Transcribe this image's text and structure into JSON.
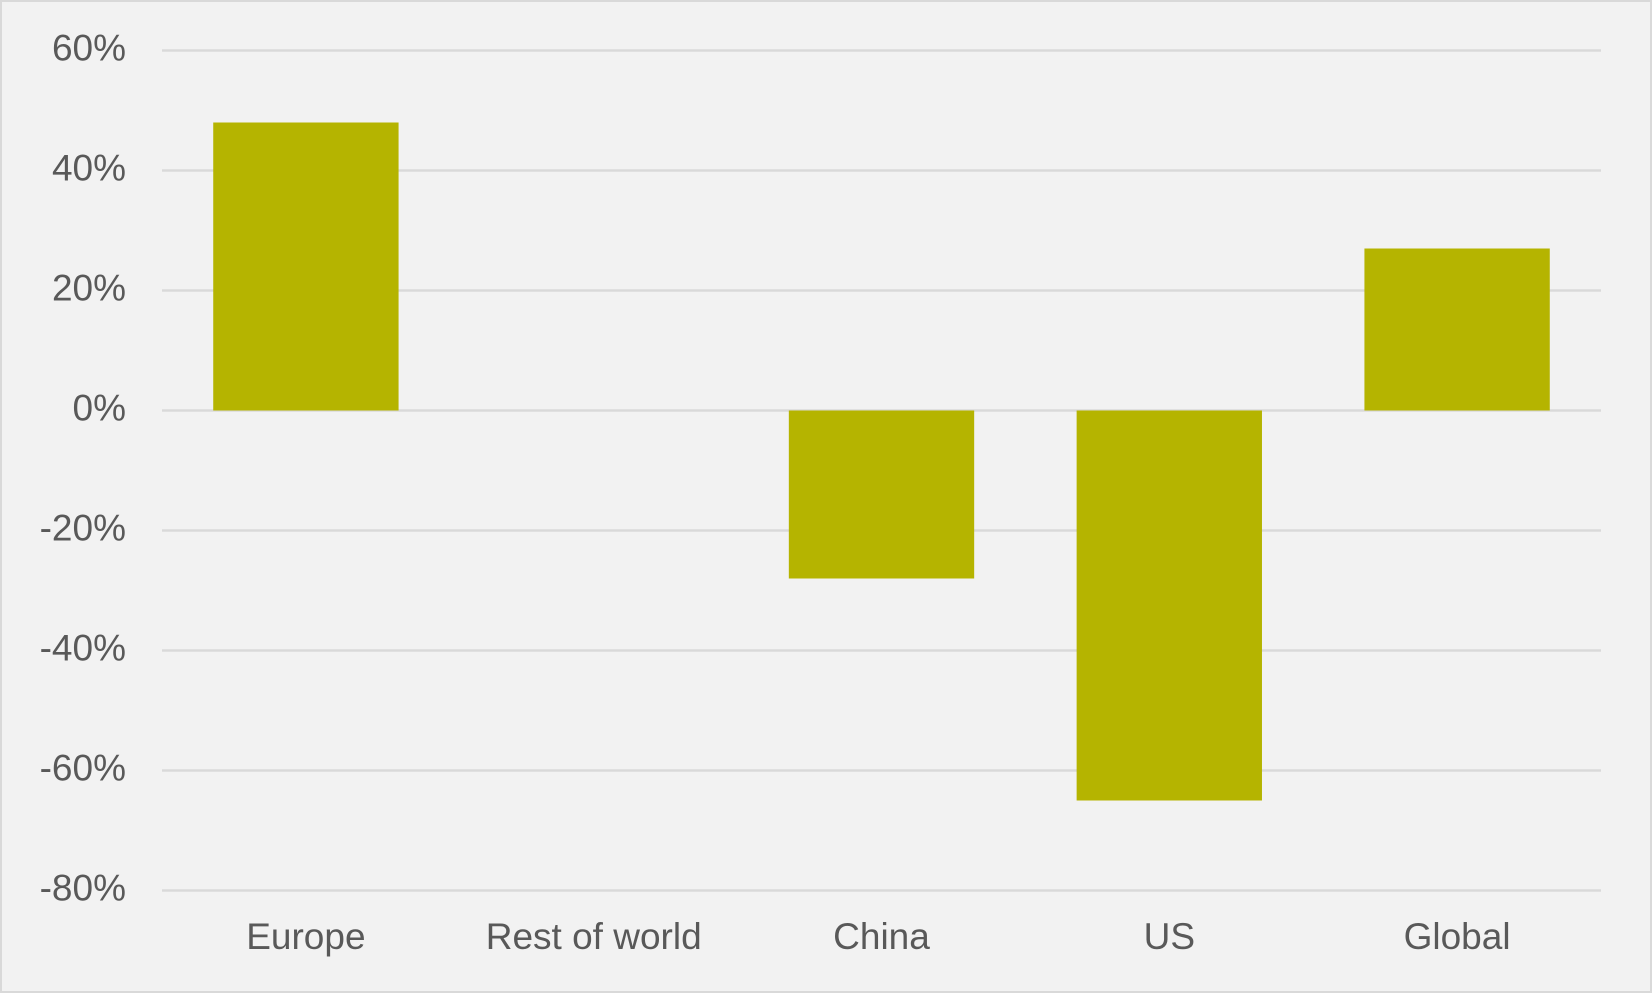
{
  "chart_data": {
    "type": "bar",
    "categories": [
      "Europe",
      "Rest of world",
      "China",
      "US",
      "Global"
    ],
    "values": [
      48,
      0,
      -28,
      -65,
      27
    ],
    "color": "#b5b400",
    "ylim": [
      -80,
      60
    ],
    "yticks": [
      {
        "value": -80,
        "label": "-80%"
      },
      {
        "value": -60,
        "label": "-60%"
      },
      {
        "value": -40,
        "label": "-40%"
      },
      {
        "value": -20,
        "label": "-20%"
      },
      {
        "value": 0,
        "label": "0%"
      },
      {
        "value": 20,
        "label": "20%"
      },
      {
        "value": 40,
        "label": "40%"
      },
      {
        "value": 60,
        "label": "60%"
      }
    ],
    "grid": true
  }
}
